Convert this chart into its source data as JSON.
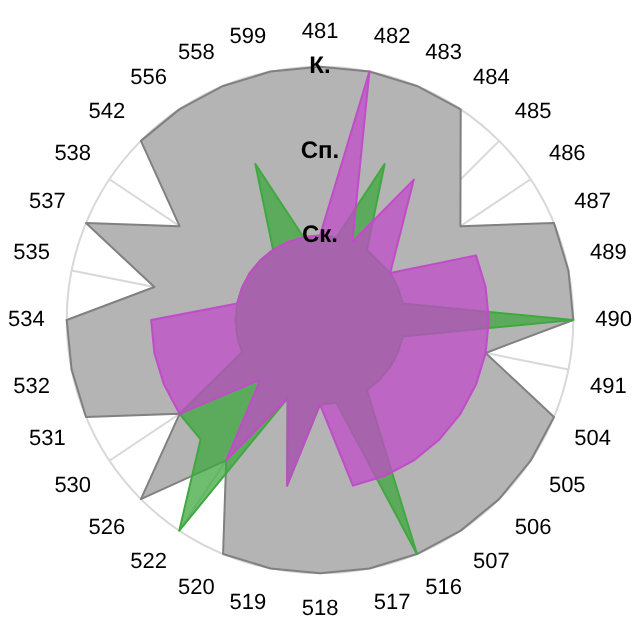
{
  "chart_data": {
    "type": "radar",
    "categories": [
      "481",
      "482",
      "483",
      "484",
      "485",
      "486",
      "487",
      "489",
      "490",
      "491",
      "504",
      "505",
      "506",
      "507",
      "516",
      "517",
      "518",
      "519",
      "520",
      "522",
      "526",
      "530",
      "531",
      "532",
      "534",
      "535",
      "537",
      "538",
      "542",
      "556",
      "558",
      "599"
    ],
    "series": [
      {
        "color": "#b4b4b4",
        "values": [
          3,
          3,
          3,
          3,
          null,
          2,
          3,
          3,
          3,
          2,
          3,
          3,
          3,
          3,
          3,
          3,
          3,
          3,
          3,
          2,
          3,
          2,
          3,
          3,
          3,
          2,
          3,
          2,
          3,
          3,
          3,
          3
        ]
      },
      {
        "color": "#3fa83f",
        "values": [
          1,
          1,
          2,
          1,
          null,
          1,
          1,
          1,
          3,
          1,
          1,
          1,
          1,
          1,
          3,
          1,
          1,
          2,
          1,
          3,
          2,
          2,
          1,
          1,
          1,
          1,
          1,
          1,
          1,
          1,
          2,
          1
        ]
      },
      {
        "color": "#c04cc8",
        "values": [
          1,
          3,
          1,
          2,
          null,
          1,
          2,
          2,
          2,
          2,
          2,
          2,
          2,
          2,
          2,
          2,
          1,
          2,
          1,
          2,
          1,
          2,
          2,
          2,
          2,
          1,
          1,
          1,
          1,
          1,
          1,
          1
        ]
      }
    ],
    "ylim": [
      0,
      3
    ],
    "yticks": [
      {
        "value": 1,
        "label": "Ск."
      },
      {
        "value": 2,
        "label": "Сп."
      },
      {
        "value": 3,
        "label": "К."
      }
    ],
    "grid": true,
    "legend": false,
    "marker": "none"
  }
}
